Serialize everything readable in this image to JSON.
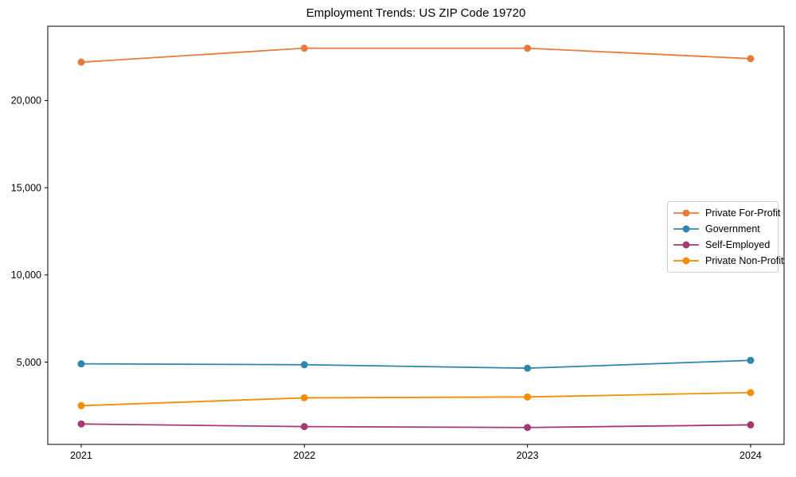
{
  "chart_data": {
    "type": "line",
    "title": "Employment Trends: US ZIP Code 19720",
    "xlabel": "",
    "ylabel": "",
    "x": [
      2021,
      2022,
      2023,
      2024
    ],
    "x_tick_labels": [
      "2021",
      "2022",
      "2023",
      "2024"
    ],
    "y_ticks": [
      5000,
      10000,
      15000,
      20000
    ],
    "y_tick_labels": [
      "5,000",
      "10,000",
      "15,000",
      "20,000"
    ],
    "xlim": [
      2020.85,
      2024.15
    ],
    "ylim": [
      280,
      24260
    ],
    "grid": false,
    "legend_position": "center-right",
    "marker": "circle",
    "series": [
      {
        "name": "Private For-Profit",
        "color": "#E87A3B",
        "values": [
          22200,
          23000,
          23000,
          22400
        ]
      },
      {
        "name": "Government",
        "color": "#2E86AB",
        "values": [
          4900,
          4850,
          4650,
          5100
        ]
      },
      {
        "name": "Self-Employed",
        "color": "#A23B72",
        "values": [
          1450,
          1300,
          1250,
          1400
        ]
      },
      {
        "name": "Private Non-Profit",
        "color": "#F18F01",
        "values": [
          2500,
          2950,
          3000,
          3250
        ]
      }
    ],
    "axis_color": "#000000"
  }
}
